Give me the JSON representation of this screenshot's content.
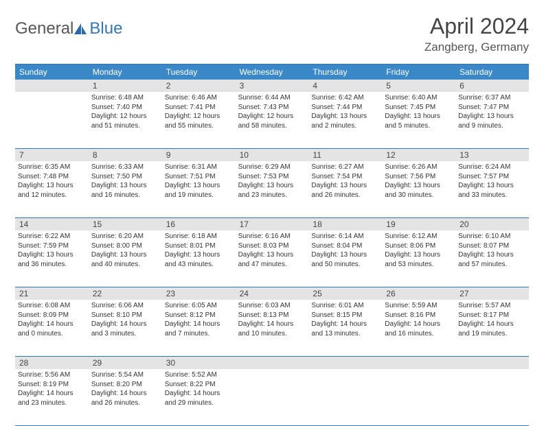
{
  "brand": {
    "part1": "General",
    "part2": "Blue"
  },
  "title": "April 2024",
  "location": "Zangberg, Germany",
  "dayNames": [
    "Sunday",
    "Monday",
    "Tuesday",
    "Wednesday",
    "Thursday",
    "Friday",
    "Saturday"
  ],
  "colors": {
    "header_bg": "#3b88c8",
    "rule": "#2b77b7",
    "daynum_bg": "#e4e4e4",
    "text": "#333333",
    "brand_gray": "#555555",
    "brand_blue": "#3377bb"
  },
  "weeks": [
    {
      "nums": [
        "",
        "1",
        "2",
        "3",
        "4",
        "5",
        "6"
      ],
      "cells": [
        null,
        {
          "sunrise": "Sunrise: 6:48 AM",
          "sunset": "Sunset: 7:40 PM",
          "day1": "Daylight: 12 hours",
          "day2": "and 51 minutes."
        },
        {
          "sunrise": "Sunrise: 6:46 AM",
          "sunset": "Sunset: 7:41 PM",
          "day1": "Daylight: 12 hours",
          "day2": "and 55 minutes."
        },
        {
          "sunrise": "Sunrise: 6:44 AM",
          "sunset": "Sunset: 7:43 PM",
          "day1": "Daylight: 12 hours",
          "day2": "and 58 minutes."
        },
        {
          "sunrise": "Sunrise: 6:42 AM",
          "sunset": "Sunset: 7:44 PM",
          "day1": "Daylight: 13 hours",
          "day2": "and 2 minutes."
        },
        {
          "sunrise": "Sunrise: 6:40 AM",
          "sunset": "Sunset: 7:45 PM",
          "day1": "Daylight: 13 hours",
          "day2": "and 5 minutes."
        },
        {
          "sunrise": "Sunrise: 6:37 AM",
          "sunset": "Sunset: 7:47 PM",
          "day1": "Daylight: 13 hours",
          "day2": "and 9 minutes."
        }
      ]
    },
    {
      "nums": [
        "7",
        "8",
        "9",
        "10",
        "11",
        "12",
        "13"
      ],
      "cells": [
        {
          "sunrise": "Sunrise: 6:35 AM",
          "sunset": "Sunset: 7:48 PM",
          "day1": "Daylight: 13 hours",
          "day2": "and 12 minutes."
        },
        {
          "sunrise": "Sunrise: 6:33 AM",
          "sunset": "Sunset: 7:50 PM",
          "day1": "Daylight: 13 hours",
          "day2": "and 16 minutes."
        },
        {
          "sunrise": "Sunrise: 6:31 AM",
          "sunset": "Sunset: 7:51 PM",
          "day1": "Daylight: 13 hours",
          "day2": "and 19 minutes."
        },
        {
          "sunrise": "Sunrise: 6:29 AM",
          "sunset": "Sunset: 7:53 PM",
          "day1": "Daylight: 13 hours",
          "day2": "and 23 minutes."
        },
        {
          "sunrise": "Sunrise: 6:27 AM",
          "sunset": "Sunset: 7:54 PM",
          "day1": "Daylight: 13 hours",
          "day2": "and 26 minutes."
        },
        {
          "sunrise": "Sunrise: 6:26 AM",
          "sunset": "Sunset: 7:56 PM",
          "day1": "Daylight: 13 hours",
          "day2": "and 30 minutes."
        },
        {
          "sunrise": "Sunrise: 6:24 AM",
          "sunset": "Sunset: 7:57 PM",
          "day1": "Daylight: 13 hours",
          "day2": "and 33 minutes."
        }
      ]
    },
    {
      "nums": [
        "14",
        "15",
        "16",
        "17",
        "18",
        "19",
        "20"
      ],
      "cells": [
        {
          "sunrise": "Sunrise: 6:22 AM",
          "sunset": "Sunset: 7:59 PM",
          "day1": "Daylight: 13 hours",
          "day2": "and 36 minutes."
        },
        {
          "sunrise": "Sunrise: 6:20 AM",
          "sunset": "Sunset: 8:00 PM",
          "day1": "Daylight: 13 hours",
          "day2": "and 40 minutes."
        },
        {
          "sunrise": "Sunrise: 6:18 AM",
          "sunset": "Sunset: 8:01 PM",
          "day1": "Daylight: 13 hours",
          "day2": "and 43 minutes."
        },
        {
          "sunrise": "Sunrise: 6:16 AM",
          "sunset": "Sunset: 8:03 PM",
          "day1": "Daylight: 13 hours",
          "day2": "and 47 minutes."
        },
        {
          "sunrise": "Sunrise: 6:14 AM",
          "sunset": "Sunset: 8:04 PM",
          "day1": "Daylight: 13 hours",
          "day2": "and 50 minutes."
        },
        {
          "sunrise": "Sunrise: 6:12 AM",
          "sunset": "Sunset: 8:06 PM",
          "day1": "Daylight: 13 hours",
          "day2": "and 53 minutes."
        },
        {
          "sunrise": "Sunrise: 6:10 AM",
          "sunset": "Sunset: 8:07 PM",
          "day1": "Daylight: 13 hours",
          "day2": "and 57 minutes."
        }
      ]
    },
    {
      "nums": [
        "21",
        "22",
        "23",
        "24",
        "25",
        "26",
        "27"
      ],
      "cells": [
        {
          "sunrise": "Sunrise: 6:08 AM",
          "sunset": "Sunset: 8:09 PM",
          "day1": "Daylight: 14 hours",
          "day2": "and 0 minutes."
        },
        {
          "sunrise": "Sunrise: 6:06 AM",
          "sunset": "Sunset: 8:10 PM",
          "day1": "Daylight: 14 hours",
          "day2": "and 3 minutes."
        },
        {
          "sunrise": "Sunrise: 6:05 AM",
          "sunset": "Sunset: 8:12 PM",
          "day1": "Daylight: 14 hours",
          "day2": "and 7 minutes."
        },
        {
          "sunrise": "Sunrise: 6:03 AM",
          "sunset": "Sunset: 8:13 PM",
          "day1": "Daylight: 14 hours",
          "day2": "and 10 minutes."
        },
        {
          "sunrise": "Sunrise: 6:01 AM",
          "sunset": "Sunset: 8:15 PM",
          "day1": "Daylight: 14 hours",
          "day2": "and 13 minutes."
        },
        {
          "sunrise": "Sunrise: 5:59 AM",
          "sunset": "Sunset: 8:16 PM",
          "day1": "Daylight: 14 hours",
          "day2": "and 16 minutes."
        },
        {
          "sunrise": "Sunrise: 5:57 AM",
          "sunset": "Sunset: 8:17 PM",
          "day1": "Daylight: 14 hours",
          "day2": "and 19 minutes."
        }
      ]
    },
    {
      "nums": [
        "28",
        "29",
        "30",
        "",
        "",
        "",
        ""
      ],
      "cells": [
        {
          "sunrise": "Sunrise: 5:56 AM",
          "sunset": "Sunset: 8:19 PM",
          "day1": "Daylight: 14 hours",
          "day2": "and 23 minutes."
        },
        {
          "sunrise": "Sunrise: 5:54 AM",
          "sunset": "Sunset: 8:20 PM",
          "day1": "Daylight: 14 hours",
          "day2": "and 26 minutes."
        },
        {
          "sunrise": "Sunrise: 5:52 AM",
          "sunset": "Sunset: 8:22 PM",
          "day1": "Daylight: 14 hours",
          "day2": "and 29 minutes."
        },
        null,
        null,
        null,
        null
      ]
    }
  ]
}
